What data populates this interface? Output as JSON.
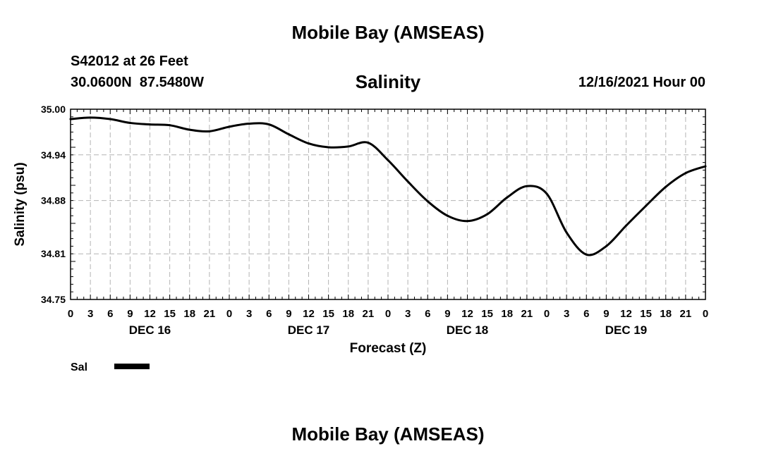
{
  "header": {
    "title": "Mobile Bay (AMSEAS)",
    "station": "S42012 at 26 Feet",
    "coords": "30.0600N  87.5480W",
    "variable": "Salinity",
    "datetime": "12/16/2021 Hour 00"
  },
  "footer": {
    "title": "Mobile Bay (AMSEAS)"
  },
  "chart_data": {
    "type": "line",
    "title": "Salinity",
    "xlabel": "Forecast (Z)",
    "ylabel": "Salinity (psu)",
    "xlim": [
      0,
      96
    ],
    "ylim": [
      34.75,
      35.0
    ],
    "yticks": [
      "35.00",
      "34.94",
      "34.88",
      "34.81",
      "34.75"
    ],
    "ytick_values": [
      35.0,
      34.94,
      34.88,
      34.81,
      34.75
    ],
    "x_tick_labels": [
      "0",
      "3",
      "6",
      "9",
      "12",
      "15",
      "18",
      "21",
      "0",
      "3",
      "6",
      "9",
      "12",
      "15",
      "18",
      "21",
      "0",
      "3",
      "6",
      "9",
      "12",
      "15",
      "18",
      "21",
      "0",
      "3",
      "6",
      "9",
      "12",
      "15",
      "18",
      "21",
      "0"
    ],
    "day_labels": [
      "DEC 16",
      "DEC 17",
      "DEC 18",
      "DEC 19"
    ],
    "day_label_hours": [
      12,
      36,
      60,
      84
    ],
    "grid": true,
    "series": [
      {
        "name": "Sal",
        "color": "#000000",
        "x": [
          0,
          3,
          6,
          9,
          12,
          15,
          18,
          21,
          24,
          27,
          30,
          33,
          36,
          39,
          42,
          45,
          48,
          51,
          54,
          57,
          60,
          63,
          66,
          69,
          72,
          75,
          78,
          81,
          84,
          87,
          90,
          93,
          96
        ],
        "values": [
          34.987,
          34.989,
          34.987,
          34.982,
          34.98,
          34.979,
          34.973,
          34.971,
          34.977,
          34.981,
          34.98,
          34.967,
          34.955,
          34.95,
          34.951,
          34.956,
          34.933,
          34.905,
          34.879,
          34.86,
          34.853,
          34.862,
          34.884,
          34.899,
          34.889,
          34.838,
          34.809,
          34.82,
          34.847,
          34.873,
          34.898,
          34.916,
          34.925
        ]
      }
    ],
    "legend": {
      "position": "bottom-left"
    }
  }
}
